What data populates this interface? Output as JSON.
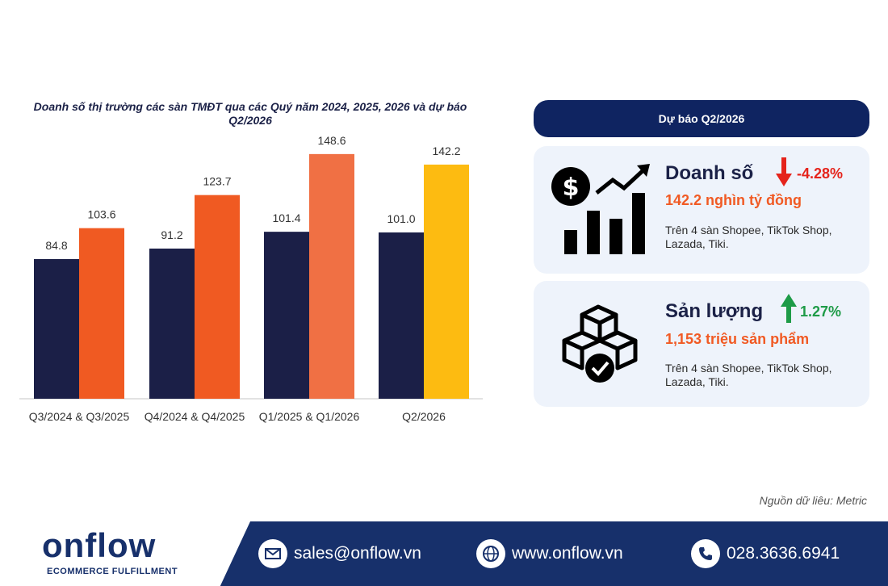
{
  "chart_data": {
    "type": "bar",
    "title": "Doanh số thị trường các sàn TMĐT qua các Quý năm 2024, 2025, 2026 và dự báo Q2/2026",
    "categories": [
      "Q3/2024 & Q3/2025",
      "Q4/2024 & Q4/2025",
      "Q1/2025 & Q1/2026",
      "Q2/2026"
    ],
    "series": [
      {
        "values": [
          84.8,
          91.2,
          101.4,
          101.0
        ],
        "colors": [
          "#1b1f47",
          "#1b1f47",
          "#1b1f47",
          "#1b1f47"
        ]
      },
      {
        "values": [
          103.6,
          123.7,
          148.6,
          142.2
        ],
        "colors": [
          "#f05a22",
          "#f05a22",
          "#f07044",
          "#fdbb11"
        ]
      }
    ],
    "ylim": [
      0,
      150
    ],
    "grid": false,
    "legend": "none"
  },
  "panel": {
    "header": "Dự báo Q2/2026",
    "sales": {
      "title": "Doanh số",
      "change": "-4.28%",
      "change_color": "#e5231b",
      "value": "142.2 nghìn tỷ đồng",
      "note": "Trên 4 sàn Shopee, TikTok Shop, Lazada, Tiki.",
      "icon": "dollar-growth-chart-icon"
    },
    "volume": {
      "title": "Sản lượng",
      "change": "1.27%",
      "change_color": "#1e9b47",
      "value": "1,153 triệu sản phẩm",
      "note": "Trên 4 sàn Shopee, TikTok Shop, Lazada, Tiki.",
      "icon": "boxes-check-icon"
    }
  },
  "source": "Nguồn dữ liêu: Metric",
  "footer": {
    "logo": "onflow",
    "tagline": "ECOMMERCE FULFILLMENT",
    "email": "sales@onflow.vn",
    "website": "www.onflow.vn",
    "phone": "028.3636.6941"
  }
}
